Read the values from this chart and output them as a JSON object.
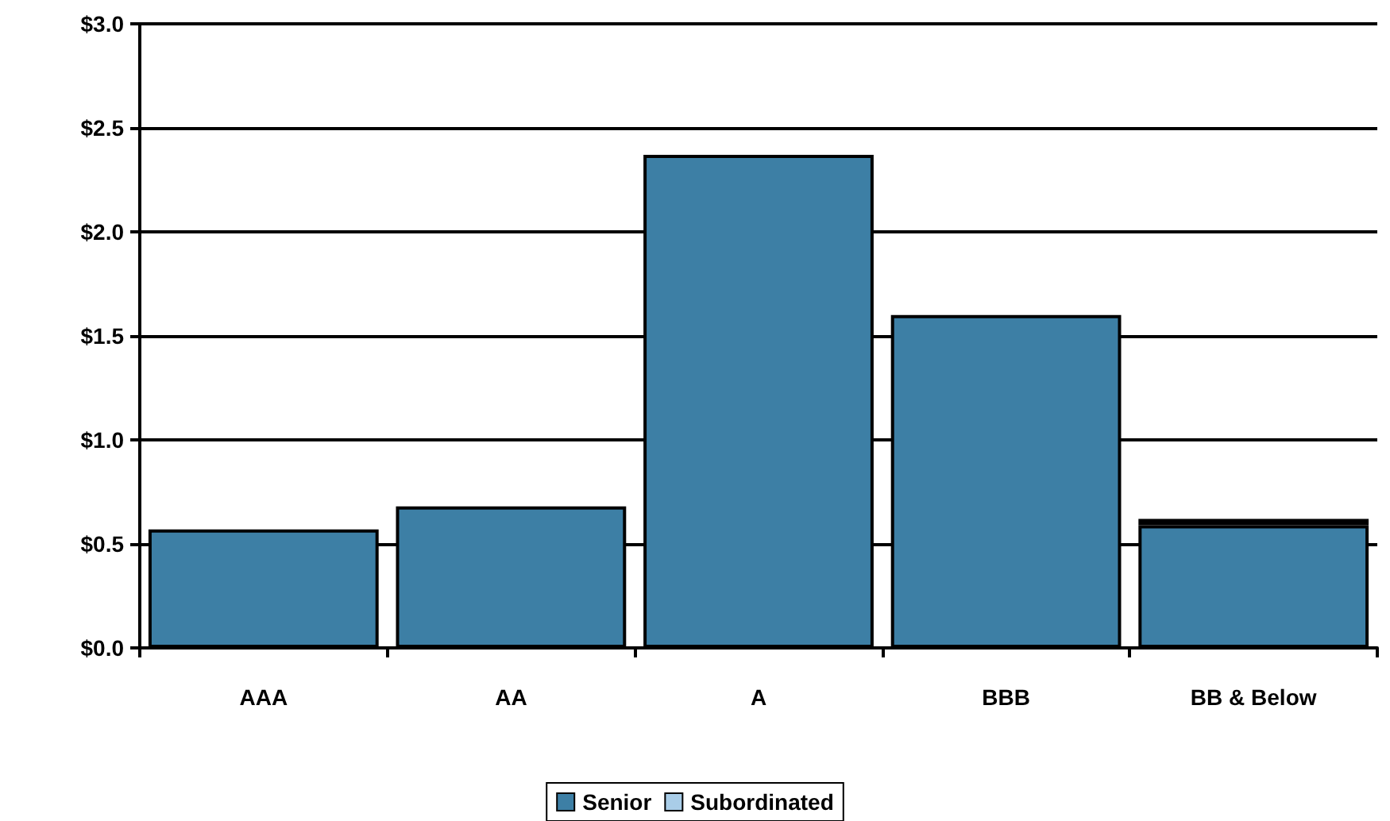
{
  "chart_data": {
    "type": "bar",
    "stacked": true,
    "categories": [
      "AAA",
      "AA",
      "A",
      "BBB",
      "BB & Below"
    ],
    "series": [
      {
        "name": "Senior",
        "color": "#3d7fa5",
        "values": [
          0.57,
          0.68,
          2.37,
          1.6,
          0.59
        ]
      },
      {
        "name": "Subordinated",
        "color": "#a9cde8",
        "values": [
          0,
          0,
          0,
          0,
          0.03
        ]
      }
    ],
    "ylim": [
      0,
      3
    ],
    "yticks": [
      {
        "value": 0,
        "label": "$0.0"
      },
      {
        "value": 0.5,
        "label": "$0.5"
      },
      {
        "value": 1,
        "label": "$1.0"
      },
      {
        "value": 1.5,
        "label": "$1.5"
      },
      {
        "value": 2,
        "label": "$2.0"
      },
      {
        "value": 2.5,
        "label": "$2.5"
      },
      {
        "value": 3,
        "label": "$3.0"
      }
    ],
    "grid": "y",
    "legend": "bottom"
  }
}
